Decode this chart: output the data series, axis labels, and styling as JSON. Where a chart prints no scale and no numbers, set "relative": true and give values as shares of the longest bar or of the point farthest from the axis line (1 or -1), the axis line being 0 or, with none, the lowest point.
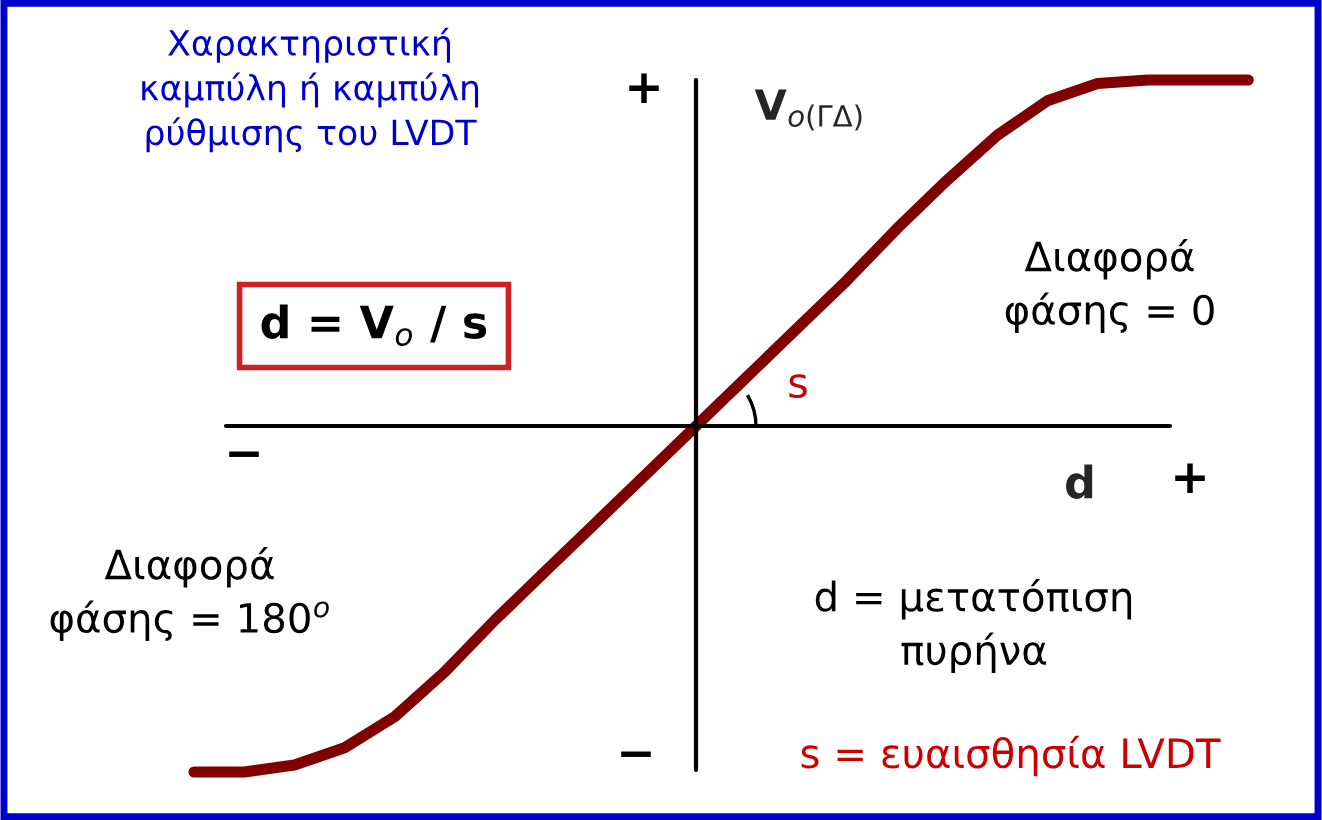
{
  "chart_data": {
    "type": "line",
    "relative": true,
    "title": "Χαρακτηριστική\nκαμπύλη ή καμπύλη\nρύθμισης του LVDT",
    "xlabel": "d",
    "ylabel": "V$_{o(ΓΔ)}$",
    "categories": [
      null,
      null,
      null,
      null,
      null,
      null,
      null,
      null,
      null,
      null,
      null,
      null,
      null,
      null,
      null,
      null,
      null,
      null,
      null,
      null,
      null,
      null
    ],
    "series": [
      {
        "color": "#800000",
        "values": [
          -1,
          -1,
          -0.98,
          -0.93,
          -0.84,
          -0.71,
          -0.56,
          -0.42,
          -0.28,
          -0.14,
          0,
          0.14,
          0.28,
          0.42,
          0.57,
          0.71,
          0.84,
          0.94,
          0.99,
          1,
          1,
          1
        ]
      }
    ],
    "marker": "none",
    "line_style": "solid",
    "annotations": [
      "d = V$_{o}$ / s",
      "+",
      "Διαφορά\nφάσης = 0",
      "s",
      "−",
      "+",
      "Διαφορά\nφάσης = 180$^{o}$",
      "d = μετατόπιση\nπυρήνα",
      "−",
      "s = ευαισθησία LVDT"
    ]
  }
}
